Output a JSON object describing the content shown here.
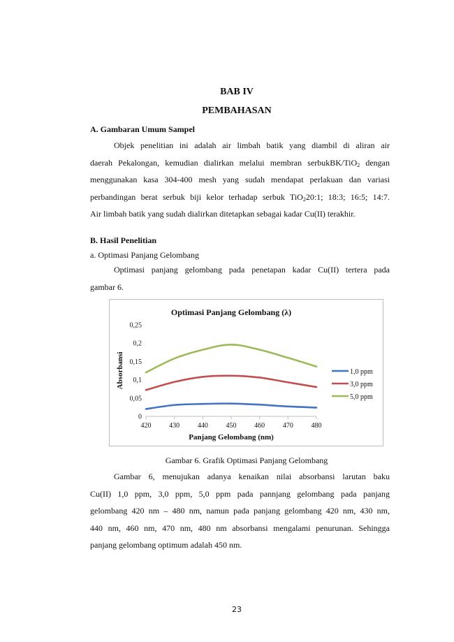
{
  "chapter": {
    "number": "BAB IV",
    "title": "PEMBAHASAN"
  },
  "section_a": {
    "heading": "A.  Gambaran Umum Sampel",
    "lines": [
      "Objek penelitian ini adalah air limbah batik yang diambil di aliran air",
      "daerah Pekalongan, kemudian dialirkan melalui membran serbukBK/TiO",
      "menggunakan kasa 304-400 mesh yang sudah mendapat perlakuan dan variasi",
      "perbandingan berat serbuk biji kelor terhadap serbuk TiO",
      "Air limbah batik yang sudah dialirkan ditetapkan sebagai kadar Cu(II) terakhir."
    ],
    "line2_sub": "2",
    "line2_tail": " dengan",
    "line4_sub": "2",
    "line4_tail": "20:1; 18:3; 16:5; 14:7."
  },
  "section_b": {
    "heading": "B.  Hasil Penelitian",
    "subitem": "a.   Optimasi Panjang Gelombang",
    "lines": [
      "Optimasi panjang gelombang pada penetapan kadar Cu(II) tertera pada",
      "gambar 6."
    ]
  },
  "chart_data": {
    "type": "line",
    "title": "Optimasi Panjang Gelombang (λ)",
    "xlabel": "Panjang Gelombang (nm)",
    "ylabel": "Absorbansi",
    "x": [
      420,
      430,
      440,
      450,
      460,
      470,
      480
    ],
    "x_ticks": [
      "420",
      "430",
      "440",
      "450",
      "460",
      "470",
      "480"
    ],
    "y_ticks": [
      "0",
      "0,05",
      "0,1",
      "0,15",
      "0,2",
      "0,25"
    ],
    "ylim": [
      0,
      0.25
    ],
    "grid": false,
    "legend_position": "right",
    "series": [
      {
        "name": "1,0 ppm",
        "color": "#4472c4",
        "values": [
          0.02,
          0.031,
          0.034,
          0.035,
          0.032,
          0.027,
          0.024
        ]
      },
      {
        "name": "3,0 ppm",
        "color": "#c0504d",
        "values": [
          0.072,
          0.094,
          0.108,
          0.111,
          0.106,
          0.093,
          0.08
        ]
      },
      {
        "name": "5,0 ppm",
        "color": "#9bbb59",
        "values": [
          0.12,
          0.158,
          0.182,
          0.196,
          0.182,
          0.16,
          0.136
        ]
      }
    ]
  },
  "figure_caption": "Gambar 6. Grafik Optimasi Panjang Gelombang",
  "discussion": {
    "lines": [
      "Gambar 6, menujukan adanya kenaikan nilai absorbansi larutan baku",
      "Cu(II) 1,0 ppm, 3,0 ppm, 5,0 ppm pada pannjang gelombang pada panjang",
      "gelombang 420 nm – 480 nm, namun pada panjang gelombang 420 nm, 430 nm,",
      "440 nm, 460 nm, 470 nm, 480 nm absorbansi mengalami penurunan. Sehingga",
      "panjang gelombang optimum adalah 450 nm."
    ]
  },
  "page_number": "23"
}
